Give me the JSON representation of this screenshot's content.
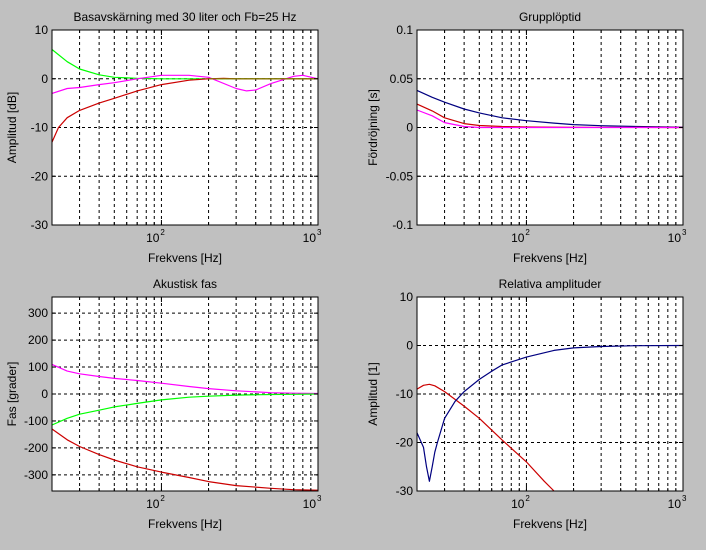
{
  "figure": {
    "background": "#c0c0c0"
  },
  "chart_data": [
    {
      "type": "line",
      "title": "Basavskärning med 30 liter och Fb=25 Hz",
      "xlabel": "Frekvens [Hz]",
      "ylabel": "Amplitud [dB]",
      "xscale": "log",
      "xlim": [
        20,
        1000
      ],
      "ylim": [
        -30,
        10
      ],
      "yticks": [
        -30,
        -20,
        -10,
        0,
        10
      ],
      "ytick_labels": [
        "-30",
        "-20",
        "-10",
        "0",
        "10"
      ],
      "grid": true,
      "series": [
        {
          "color": "#00ff00",
          "x": [
            20,
            25,
            30,
            40,
            50,
            70,
            100,
            150,
            200,
            300,
            500,
            700,
            1000
          ],
          "y": [
            6,
            3.5,
            2,
            0.8,
            0.3,
            0.1,
            0,
            0,
            0,
            0,
            0,
            0,
            0
          ]
        },
        {
          "color": "#ff00ff",
          "x": [
            20,
            25,
            30,
            40,
            50,
            70,
            100,
            150,
            200,
            300,
            350,
            400,
            500,
            700,
            800,
            1000
          ],
          "y": [
            -3,
            -2,
            -1.8,
            -1.2,
            -0.8,
            0,
            0.7,
            0.7,
            0.3,
            -2,
            -2.5,
            -2.3,
            -1,
            0.5,
            0.7,
            0
          ]
        },
        {
          "color": "#cc0000",
          "x": [
            20,
            22,
            25,
            30,
            40,
            50,
            70,
            100,
            150,
            200,
            250,
            300,
            500,
            700,
            1000
          ],
          "y": [
            -13,
            -10,
            -8,
            -6.5,
            -5,
            -4,
            -2.5,
            -1.2,
            -0.3,
            0,
            0.1,
            0,
            0,
            0,
            0
          ]
        },
        {
          "color": "#808000",
          "x": [
            200,
            300,
            500,
            700,
            1000
          ],
          "y": [
            0,
            0,
            0,
            0,
            0
          ]
        }
      ]
    },
    {
      "type": "line",
      "title": "Grupplöptid",
      "xlabel": "Frekvens [Hz]",
      "ylabel": "Fördröjning [s]",
      "xscale": "log",
      "xlim": [
        20,
        1000
      ],
      "ylim": [
        -0.1,
        0.1
      ],
      "yticks": [
        -0.1,
        -0.05,
        0,
        0.05,
        0.1
      ],
      "ytick_labels": [
        "-0.1",
        "-0.05",
        "0",
        "0.05",
        "0.1"
      ],
      "grid": true,
      "series": [
        {
          "color": "#000080",
          "x": [
            20,
            25,
            30,
            40,
            50,
            70,
            100,
            150,
            200,
            300,
            500,
            1000
          ],
          "y": [
            0.038,
            0.031,
            0.026,
            0.019,
            0.015,
            0.01,
            0.007,
            0.0045,
            0.003,
            0.0018,
            0.001,
            0.0003
          ]
        },
        {
          "color": "#cc0000",
          "x": [
            20,
            25,
            30,
            40,
            50,
            70,
            100,
            200,
            1000
          ],
          "y": [
            0.024,
            0.017,
            0.01,
            0.004,
            0.002,
            0.001,
            0.0005,
            0.0002,
            0
          ]
        },
        {
          "color": "#ff00ff",
          "x": [
            20,
            25,
            30,
            40,
            50,
            70,
            100,
            200,
            1000
          ],
          "y": [
            0.018,
            0.012,
            0.005,
            0.001,
            0,
            0,
            0,
            0,
            0
          ]
        }
      ]
    },
    {
      "type": "line",
      "title": "Akustisk fas",
      "xlabel": "Frekvens [Hz]",
      "ylabel": "Fas [grader]",
      "xscale": "log",
      "xlim": [
        20,
        1000
      ],
      "ylim": [
        -360,
        360
      ],
      "yticks": [
        -300,
        -200,
        -100,
        0,
        100,
        200,
        300
      ],
      "ytick_labels": [
        "-300",
        "-200",
        "-100",
        "0",
        "100",
        "200",
        "300"
      ],
      "grid": true,
      "series": [
        {
          "color": "#ff00ff",
          "x": [
            20,
            25,
            30,
            40,
            50,
            70,
            100,
            150,
            200,
            300,
            500,
            700,
            1000
          ],
          "y": [
            110,
            85,
            75,
            65,
            58,
            50,
            40,
            28,
            20,
            12,
            5,
            3,
            2
          ]
        },
        {
          "color": "#00ff00",
          "x": [
            20,
            25,
            30,
            40,
            50,
            70,
            100,
            150,
            200,
            300,
            500,
            700,
            1000
          ],
          "y": [
            -115,
            -90,
            -75,
            -60,
            -48,
            -35,
            -22,
            -12,
            -8,
            -4,
            -2,
            -1,
            0
          ]
        },
        {
          "color": "#cc0000",
          "x": [
            20,
            25,
            30,
            40,
            50,
            70,
            100,
            150,
            200,
            300,
            500,
            700,
            1000
          ],
          "y": [
            -130,
            -170,
            -195,
            -225,
            -245,
            -270,
            -290,
            -310,
            -325,
            -340,
            -350,
            -355,
            -357
          ]
        }
      ]
    },
    {
      "type": "line",
      "title": "Relativa amplituder",
      "xlabel": "Frekvens [Hz]",
      "ylabel": "Amplitud [1]",
      "xscale": "log",
      "xlim": [
        20,
        1000
      ],
      "ylim": [
        -30,
        10
      ],
      "yticks": [
        -30,
        -20,
        -10,
        0,
        10
      ],
      "ytick_labels": [
        "-30",
        "-20",
        "-10",
        "0",
        "10"
      ],
      "grid": true,
      "series": [
        {
          "color": "#cc0000",
          "x": [
            20,
            22,
            24,
            26,
            30,
            40,
            50,
            70,
            100,
            130,
            150
          ],
          "y": [
            -9,
            -8.2,
            -8,
            -8.3,
            -9.5,
            -12.5,
            -15,
            -19.5,
            -24,
            -28,
            -30
          ]
        },
        {
          "color": "#000080",
          "x": [
            20,
            22,
            23,
            24,
            25,
            26,
            27,
            30,
            35,
            40,
            50,
            60,
            70,
            100,
            150,
            200,
            300,
            500,
            1000
          ],
          "y": [
            -18,
            -21,
            -25,
            -28,
            -25,
            -22,
            -20,
            -15,
            -11.5,
            -9.5,
            -7,
            -5.3,
            -4,
            -2.4,
            -1,
            -0.5,
            -0.2,
            -0.05,
            0
          ]
        }
      ]
    }
  ]
}
